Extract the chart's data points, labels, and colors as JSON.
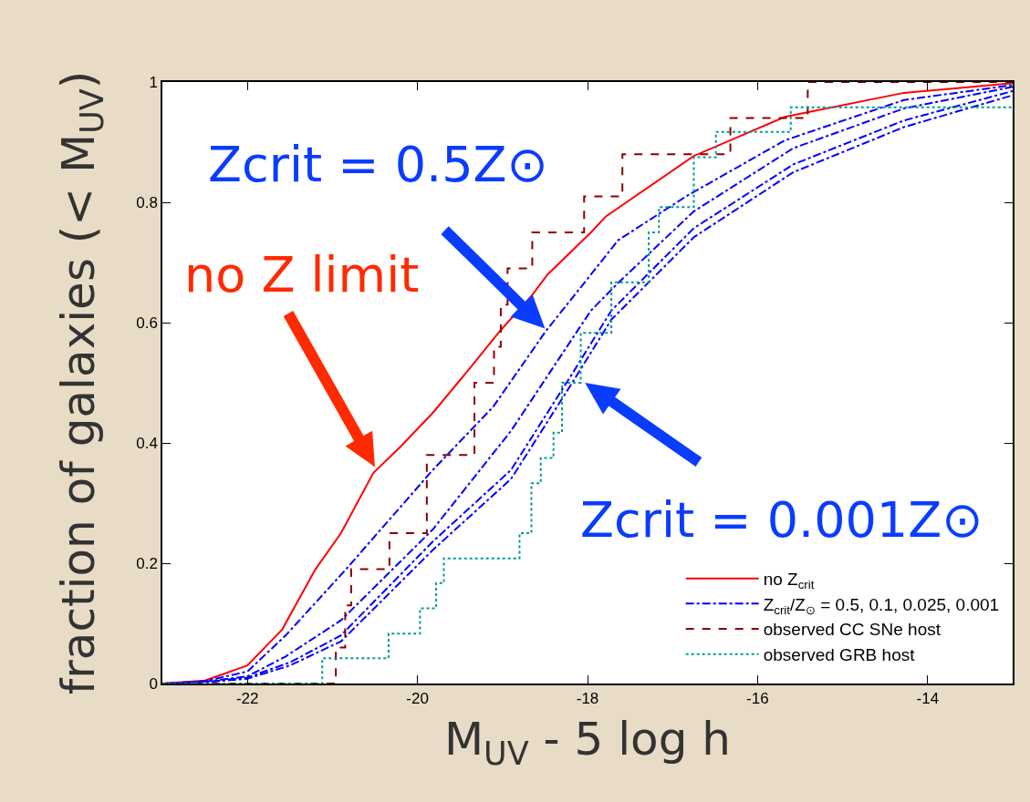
{
  "chart_data": {
    "type": "line",
    "xlabel": "M$_{UV}$ - 5 log h",
    "ylabel": "fraction of galaxies (< M$_{UV}$)",
    "xlim": [
      -23,
      -13
    ],
    "ylim": [
      0,
      1
    ],
    "xticks": [
      -22,
      -20,
      -18,
      -16,
      -14
    ],
    "yticks": [
      0,
      0.2,
      0.4,
      0.6,
      0.8,
      1
    ],
    "grid": false,
    "legend": "bottom right",
    "series": [
      {
        "name": "no Z$_{crit}$",
        "color": "#ff0000",
        "line_style": "solid",
        "x": [
          -23,
          -22.5,
          -22,
          -21.59,
          -21.2,
          -20.9,
          -20.52,
          -20.19,
          -19.82,
          -19.35,
          -19.03,
          -18.65,
          -18.47,
          -17.96,
          -17.78,
          -16.75,
          -15.68,
          -14.28,
          -13
        ],
        "values": [
          0,
          0.005,
          0.03,
          0.09,
          0.19,
          0.25,
          0.35,
          0.395,
          0.45,
          0.53,
          0.586,
          0.646,
          0.68,
          0.75,
          0.777,
          0.877,
          0.942,
          0.982,
          0.998
        ]
      },
      {
        "name": "Z$_{crit}$/Z$_{⊙}$ = 0.5, 0.1, 0.025, 0.001",
        "color": "#0000ff",
        "line_style": "dashdot",
        "x": [
          -22.95,
          -22.5,
          -22,
          -21.55,
          -20.84,
          -19.82,
          -19.11,
          -18.49,
          -17.96,
          -17.64,
          -16.84,
          -15.68,
          -14.28,
          -13
        ],
        "values": [
          0,
          0.004,
          0.02,
          0.08,
          0.19,
          0.355,
          0.46,
          0.586,
          0.68,
          0.737,
          0.81,
          0.903,
          0.97,
          0.995
        ]
      },
      {
        "color": "#0000ff",
        "line_style": "dashdot",
        "x": [
          -22.9,
          -22.5,
          -22,
          -21.55,
          -20.9,
          -19.82,
          -18.9,
          -17.96,
          -17.64,
          -16.75,
          -15.58,
          -14.28,
          -13
        ],
        "values": [
          0,
          0.003,
          0.012,
          0.045,
          0.105,
          0.256,
          0.42,
          0.62,
          0.666,
          0.785,
          0.89,
          0.956,
          0.992
        ]
      },
      {
        "color": "#0000ff",
        "line_style": "dashdot",
        "x": [
          -23,
          -22.5,
          -22,
          -21.5,
          -20.9,
          -19.82,
          -18.9,
          -18.18,
          -17.72,
          -16.75,
          -15.58,
          -14.28,
          -13
        ],
        "values": [
          0,
          0.002,
          0.01,
          0.035,
          0.08,
          0.236,
          0.355,
          0.515,
          0.62,
          0.757,
          0.863,
          0.936,
          0.985
        ]
      },
      {
        "color": "#0000ff",
        "line_style": "dashdot",
        "x": [
          -23,
          -22.5,
          -22,
          -21.5,
          -20.9,
          -19.82,
          -18.9,
          -18.18,
          -17.72,
          -16.75,
          -15.58,
          -14.28,
          -13
        ],
        "values": [
          0,
          0.002,
          0.008,
          0.03,
          0.07,
          0.222,
          0.34,
          0.5,
          0.605,
          0.742,
          0.85,
          0.925,
          0.978
        ]
      },
      {
        "name": "observed CC SNe host",
        "type": "step",
        "color": "#8b0000",
        "line_style": "dashed",
        "x": [
          -23,
          -20.96,
          -20.85,
          -20.78,
          -20.33,
          -19.89,
          -19.33,
          -19.1,
          -19.02,
          -18.94,
          -18.65,
          -18.04,
          -17.59,
          -16.32,
          -15.41,
          -13
        ],
        "values": [
          0,
          0.06,
          0.13,
          0.19,
          0.25,
          0.38,
          0.5,
          0.56,
          0.63,
          0.69,
          0.75,
          0.81,
          0.88,
          0.94,
          1,
          1
        ]
      },
      {
        "name": "observed GRB host",
        "type": "step",
        "color": "#009999",
        "line_style": "dotted",
        "x": [
          -23,
          -21.12,
          -20.34,
          -19.97,
          -19.78,
          -19.69,
          -18.8,
          -18.66,
          -18.55,
          -18.4,
          -18.3,
          -18.08,
          -17.72,
          -17.28,
          -17.16,
          -16.75,
          -16.49,
          -15.61,
          -13
        ],
        "values": [
          0,
          0.042,
          0.083,
          0.125,
          0.167,
          0.208,
          0.25,
          0.333,
          0.375,
          0.417,
          0.5,
          0.583,
          0.667,
          0.75,
          0.792,
          0.875,
          0.917,
          0.958,
          0.958
        ]
      }
    ],
    "annotations": [
      "no Z limit",
      {
        "text": "Zcrit = 0.5Z⊙",
        "x": -18.5,
        "y": 0.59
      },
      {
        "text": "Zcrit = 0.001Z⊙",
        "x": -18.03,
        "y": 0.5
      }
    ]
  }
}
